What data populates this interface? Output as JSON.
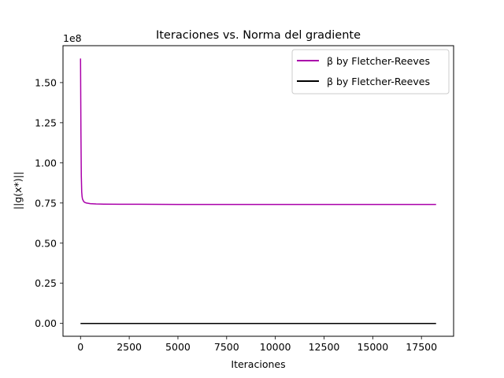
{
  "chart_data": {
    "type": "line",
    "title": "Iteraciones vs. Norma del gradiente",
    "xlabel": "Iteraciones",
    "ylabel": "||g(x*)||",
    "y_offset_label": "1e8",
    "xlim": [
      -900,
      19150
    ],
    "ylim": [
      -0.08,
      1.73
    ],
    "y_scale_factor": 100000000,
    "x_ticks": [
      0,
      2500,
      5000,
      7500,
      10000,
      12500,
      15000,
      17500
    ],
    "x_tick_labels": [
      "0",
      "2500",
      "5000",
      "7500",
      "10000",
      "12500",
      "15000",
      "17500"
    ],
    "y_ticks": [
      0.0,
      0.25,
      0.5,
      0.75,
      1.0,
      1.25,
      1.5
    ],
    "y_tick_labels": [
      "0.00",
      "0.25",
      "0.50",
      "0.75",
      "1.00",
      "1.25",
      "1.50"
    ],
    "grid": false,
    "legend_position": "top-right",
    "series": [
      {
        "name": "β by Fletcher-Reeves",
        "color": "#aa00aa",
        "x": [
          0,
          20,
          40,
          60,
          80,
          100,
          150,
          200,
          300,
          500,
          800,
          1200,
          2000,
          3000,
          5000,
          8000,
          12000,
          15000,
          18250
        ],
        "y": [
          1.65,
          1.2,
          0.92,
          0.82,
          0.79,
          0.775,
          0.762,
          0.755,
          0.75,
          0.746,
          0.744,
          0.743,
          0.742,
          0.742,
          0.741,
          0.741,
          0.741,
          0.741,
          0.741
        ]
      },
      {
        "name": "β by Fletcher-Reeves",
        "color": "#000000",
        "x": [
          0,
          18250
        ],
        "y": [
          0.0,
          0.0
        ]
      }
    ]
  }
}
